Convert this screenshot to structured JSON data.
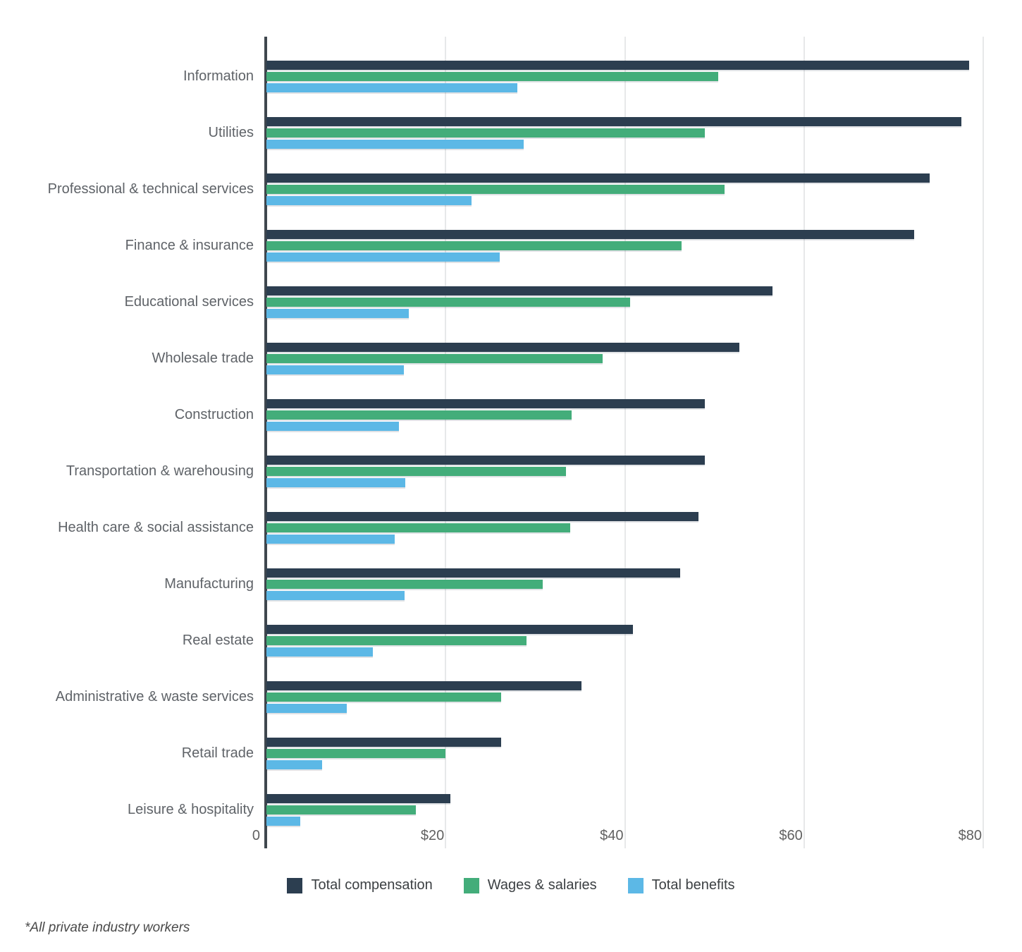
{
  "chart_data": {
    "type": "bar",
    "orientation": "horizontal",
    "title": "",
    "xlabel": "",
    "ylabel": "",
    "xlim": [
      0,
      80
    ],
    "grid": "vertical",
    "legend_position": "bottom-center",
    "x_ticks": [
      {
        "value": 0,
        "label": "0"
      },
      {
        "value": 20,
        "label": "$20"
      },
      {
        "value": 40,
        "label": "$40"
      },
      {
        "value": 60,
        "label": "$60"
      },
      {
        "value": 80,
        "label": "$80"
      }
    ],
    "categories": [
      "Information",
      "Utilities",
      "Professional & technical services",
      "Finance & insurance",
      "Educational services",
      "Wholesale trade",
      "Construction",
      "Transportation & warehousing",
      "Health care & social assistance",
      "Manufacturing",
      "Real estate",
      "Administrative & waste services",
      "Retail trade",
      "Leisure & hospitality"
    ],
    "series": [
      {
        "name": "Total compensation",
        "color": "#2c3e50",
        "values": [
          78.4,
          77.6,
          74.0,
          72.3,
          56.5,
          52.8,
          48.9,
          48.9,
          48.2,
          46.2,
          40.9,
          35.2,
          26.2,
          20.5
        ]
      },
      {
        "name": "Wages & salaries",
        "color": "#43ad7a",
        "values": [
          50.4,
          48.9,
          51.1,
          46.3,
          40.6,
          37.5,
          34.1,
          33.4,
          33.9,
          30.8,
          29.0,
          26.2,
          20.0,
          16.7
        ]
      },
      {
        "name": "Total benefits",
        "color": "#5cb8e6",
        "values": [
          28.0,
          28.7,
          22.9,
          26.0,
          15.9,
          15.3,
          14.8,
          15.5,
          14.3,
          15.4,
          11.9,
          9.0,
          6.2,
          3.8
        ]
      }
    ]
  },
  "footnote": "*All private industry workers",
  "colors": {
    "axis": "#3f474e",
    "gridline": "#e7e8e9",
    "category_label": "#5f6368",
    "tick_label": "#616161",
    "legend_text": "#3c4043"
  }
}
